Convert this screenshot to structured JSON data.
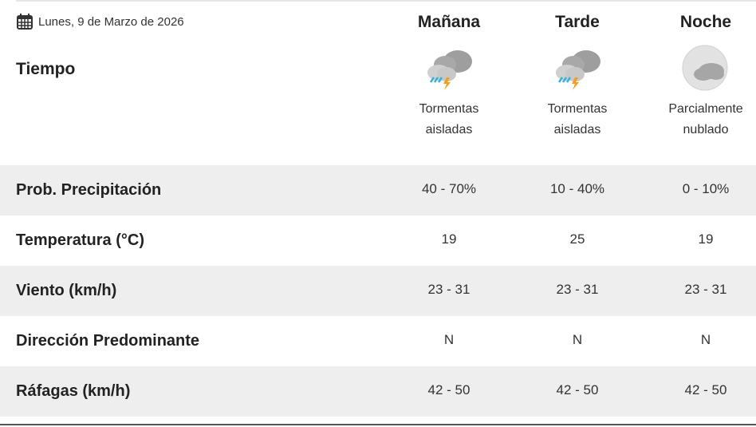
{
  "date": "Lunes, 9 de Marzo de 2026",
  "section_title": "Tiempo",
  "periods": [
    {
      "name": "Mañana",
      "icon": "thunderstorm-icon",
      "desc1": "Tormentas",
      "desc2": "aisladas"
    },
    {
      "name": "Tarde",
      "icon": "thunderstorm-icon",
      "desc1": "Tormentas",
      "desc2": "aisladas"
    },
    {
      "name": "Noche",
      "icon": "partly-cloudy-night-icon",
      "desc1": "Parcialmente",
      "desc2": "nublado"
    }
  ],
  "rows": [
    {
      "label": "Prob. Precipitación",
      "values": [
        "40 - 70%",
        "10 - 40%",
        "0 - 10%"
      ]
    },
    {
      "label": "Temperatura (°C)",
      "values": [
        "19",
        "25",
        "19"
      ]
    },
    {
      "label": "Viento (km/h)",
      "values": [
        "23 - 31",
        "23 - 31",
        "23 - 31"
      ]
    },
    {
      "label": "Dirección Predominante",
      "values": [
        "N",
        "N",
        "N"
      ]
    },
    {
      "label": "Ráfagas (km/h)",
      "values": [
        "42 - 50",
        "42 - 50",
        "42 - 50"
      ]
    }
  ]
}
